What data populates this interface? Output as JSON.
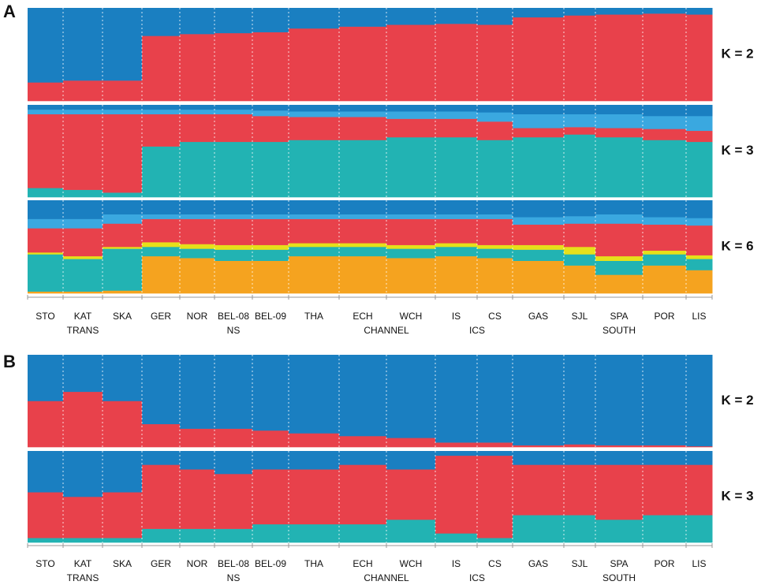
{
  "chart_data": [
    {
      "type": "structure",
      "panel": "A",
      "categories": [
        "STO",
        "KAT",
        "SKA",
        "GER",
        "NOR",
        "BEL-08",
        "BEL-09",
        "THA",
        "ECH",
        "WCH",
        "IS",
        "CS",
        "GAS",
        "SJL",
        "SPA",
        "POR",
        "LIS"
      ],
      "sublabels": [
        null,
        "TRANS",
        null,
        null,
        null,
        "NS",
        null,
        null,
        "CHANNEL",
        null,
        "ICS",
        null,
        null,
        null,
        "SOUTH",
        null,
        null
      ],
      "rows": [
        {
          "label": "K = 2",
          "series": [
            {
              "color": "#e8414b",
              "values": [
                0.2,
                0.22,
                0.22,
                0.7,
                0.72,
                0.73,
                0.74,
                0.78,
                0.8,
                0.82,
                0.83,
                0.82,
                0.9,
                0.92,
                0.93,
                0.94,
                0.93
              ]
            },
            {
              "color": "#1a7fc1",
              "values": [
                0.8,
                0.78,
                0.78,
                0.3,
                0.28,
                0.27,
                0.26,
                0.22,
                0.2,
                0.18,
                0.17,
                0.18,
                0.1,
                0.08,
                0.07,
                0.06,
                0.07
              ]
            }
          ]
        },
        {
          "label": "K = 3",
          "series": [
            {
              "color": "#22b3b3",
              "values": [
                0.1,
                0.08,
                0.05,
                0.55,
                0.6,
                0.6,
                0.6,
                0.62,
                0.62,
                0.65,
                0.65,
                0.62,
                0.65,
                0.68,
                0.65,
                0.62,
                0.6
              ]
            },
            {
              "color": "#e8414b",
              "values": [
                0.8,
                0.82,
                0.85,
                0.35,
                0.3,
                0.3,
                0.28,
                0.25,
                0.25,
                0.2,
                0.2,
                0.2,
                0.1,
                0.08,
                0.1,
                0.12,
                0.12
              ]
            },
            {
              "color": "#3aa8e0",
              "values": [
                0.05,
                0.05,
                0.05,
                0.05,
                0.05,
                0.05,
                0.06,
                0.06,
                0.06,
                0.08,
                0.08,
                0.1,
                0.15,
                0.14,
                0.15,
                0.14,
                0.16
              ]
            },
            {
              "color": "#1a7fc1",
              "values": [
                0.05,
                0.05,
                0.05,
                0.05,
                0.05,
                0.05,
                0.06,
                0.07,
                0.07,
                0.07,
                0.07,
                0.08,
                0.1,
                0.1,
                0.1,
                0.12,
                0.12
              ]
            }
          ]
        },
        {
          "label": "K = 6",
          "series": [
            {
              "color": "#f5a31f",
              "values": [
                0.02,
                0.02,
                0.03,
                0.4,
                0.38,
                0.35,
                0.35,
                0.4,
                0.4,
                0.38,
                0.4,
                0.38,
                0.35,
                0.3,
                0.2,
                0.3,
                0.25
              ]
            },
            {
              "color": "#22b3b3",
              "values": [
                0.4,
                0.35,
                0.45,
                0.1,
                0.1,
                0.12,
                0.12,
                0.1,
                0.1,
                0.1,
                0.1,
                0.1,
                0.12,
                0.12,
                0.15,
                0.12,
                0.12
              ]
            },
            {
              "color": "#e6e01a",
              "values": [
                0.02,
                0.03,
                0.02,
                0.05,
                0.05,
                0.05,
                0.05,
                0.04,
                0.04,
                0.04,
                0.04,
                0.04,
                0.05,
                0.08,
                0.05,
                0.04,
                0.04
              ]
            },
            {
              "color": "#e8414b",
              "values": [
                0.26,
                0.3,
                0.25,
                0.25,
                0.27,
                0.28,
                0.28,
                0.26,
                0.26,
                0.28,
                0.26,
                0.28,
                0.22,
                0.25,
                0.35,
                0.28,
                0.32
              ]
            },
            {
              "color": "#3aa8e0",
              "values": [
                0.1,
                0.1,
                0.1,
                0.05,
                0.05,
                0.05,
                0.05,
                0.05,
                0.05,
                0.05,
                0.05,
                0.05,
                0.08,
                0.08,
                0.1,
                0.08,
                0.08
              ]
            },
            {
              "color": "#1a7fc1",
              "values": [
                0.2,
                0.2,
                0.15,
                0.15,
                0.15,
                0.15,
                0.15,
                0.15,
                0.15,
                0.15,
                0.15,
                0.15,
                0.18,
                0.17,
                0.15,
                0.18,
                0.19
              ]
            }
          ]
        }
      ]
    },
    {
      "type": "structure",
      "panel": "B",
      "categories": [
        "STO",
        "KAT",
        "SKA",
        "GER",
        "NOR",
        "BEL-08",
        "BEL-09",
        "THA",
        "ECH",
        "WCH",
        "IS",
        "CS",
        "GAS",
        "SJL",
        "SPA",
        "POR",
        "LIS"
      ],
      "sublabels": [
        null,
        "TRANS",
        null,
        null,
        null,
        "NS",
        null,
        null,
        "CHANNEL",
        null,
        "ICS",
        null,
        null,
        null,
        "SOUTH",
        null,
        null
      ],
      "rows": [
        {
          "label": "K = 2",
          "series": [
            {
              "color": "#e8414b",
              "values": [
                0.5,
                0.6,
                0.5,
                0.25,
                0.2,
                0.2,
                0.18,
                0.15,
                0.12,
                0.1,
                0.05,
                0.05,
                0.02,
                0.03,
                0.02,
                0.02,
                0.01
              ]
            },
            {
              "color": "#1a7fc1",
              "values": [
                0.5,
                0.4,
                0.5,
                0.75,
                0.8,
                0.8,
                0.82,
                0.85,
                0.88,
                0.9,
                0.95,
                0.95,
                0.98,
                0.97,
                0.98,
                0.98,
                0.99
              ]
            }
          ]
        },
        {
          "label": "K = 3",
          "series": [
            {
              "color": "#22b3b3",
              "values": [
                0.05,
                0.05,
                0.05,
                0.15,
                0.15,
                0.15,
                0.2,
                0.2,
                0.2,
                0.25,
                0.1,
                0.05,
                0.3,
                0.3,
                0.25,
                0.3,
                0.3
              ]
            },
            {
              "color": "#e8414b",
              "values": [
                0.5,
                0.45,
                0.5,
                0.7,
                0.65,
                0.6,
                0.6,
                0.6,
                0.65,
                0.55,
                0.85,
                0.9,
                0.55,
                0.55,
                0.6,
                0.55,
                0.55
              ]
            },
            {
              "color": "#1a7fc1",
              "values": [
                0.45,
                0.5,
                0.45,
                0.15,
                0.2,
                0.25,
                0.2,
                0.2,
                0.15,
                0.2,
                0.05,
                0.05,
                0.15,
                0.15,
                0.15,
                0.15,
                0.15
              ]
            }
          ]
        }
      ]
    }
  ]
}
